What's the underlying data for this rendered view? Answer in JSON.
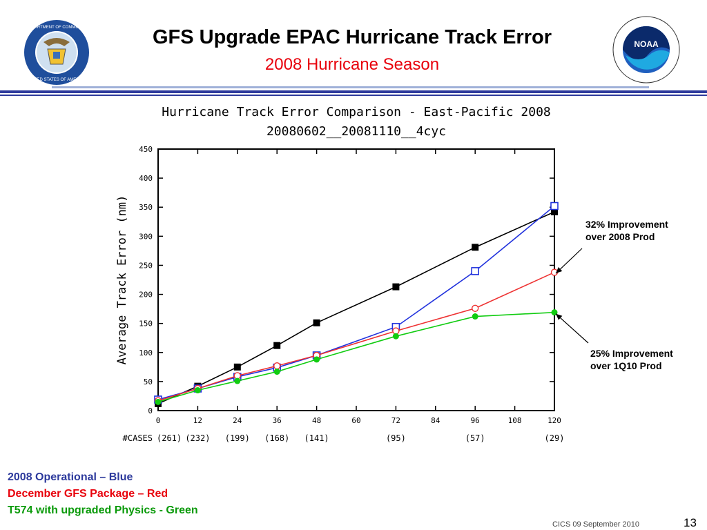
{
  "header": {
    "title": "GFS Upgrade EPAC Hurricane Track Error",
    "subtitle": "2008 Hurricane Season",
    "subtitle_color": "#e8000b",
    "rule_color": "#2d3a9c"
  },
  "logos": {
    "left_icon": "department-of-commerce-seal",
    "left_text": "DEPARTMENT OF COMMERCE · UNITED STATES OF AMERICA",
    "right_icon": "noaa-logo",
    "right_text": "NATIONAL OCEANIC AND ATMOSPHERIC ADMINISTRATION · U.S. DEPARTMENT OF COMMERCE",
    "right_label": "NOAA"
  },
  "chart_data": {
    "type": "line",
    "title": "Hurricane Track Error Comparison - East-Pacific 2008",
    "subtitle": "20080602__20081110__4cyc",
    "ylabel": "Average Track Error (nm)",
    "xlabel": "",
    "xlim": [
      0,
      120
    ],
    "ylim": [
      0,
      450
    ],
    "x_ticks": [
      0,
      12,
      24,
      36,
      48,
      60,
      72,
      84,
      96,
      108,
      120
    ],
    "y_ticks": [
      0,
      50,
      100,
      150,
      200,
      250,
      300,
      350,
      400,
      450
    ],
    "cases_label": "#CASES",
    "cases": [
      {
        "x": 0,
        "label": "(261)"
      },
      {
        "x": 12,
        "label": "(232)"
      },
      {
        "x": 24,
        "label": "(199)"
      },
      {
        "x": 36,
        "label": "(168)"
      },
      {
        "x": 48,
        "label": "(141)"
      },
      {
        "x": 72,
        "label": "(95)"
      },
      {
        "x": 96,
        "label": "(57)"
      },
      {
        "x": 120,
        "label": "(29)"
      }
    ],
    "grid": false,
    "series": [
      {
        "color": "#000000",
        "marker": "filled-square",
        "x": [
          0,
          12,
          24,
          36,
          48,
          72,
          96,
          120
        ],
        "y": [
          12,
          42,
          75,
          112,
          151,
          213,
          281,
          342
        ]
      },
      {
        "color": "#2233dd",
        "marker": "open-square",
        "x": [
          0,
          12,
          24,
          36,
          48,
          72,
          96,
          120
        ],
        "y": [
          19,
          38,
          58,
          74,
          95,
          144,
          240,
          352
        ]
      },
      {
        "color": "#ee3333",
        "marker": "open-circle",
        "x": [
          0,
          12,
          24,
          36,
          48,
          72,
          96,
          120
        ],
        "y": [
          17,
          38,
          60,
          77,
          95,
          137,
          176,
          238
        ]
      },
      {
        "color": "#11cc11",
        "marker": "filled-circle",
        "x": [
          0,
          12,
          24,
          36,
          48,
          72,
          96,
          120
        ],
        "y": [
          15,
          35,
          51,
          67,
          88,
          128,
          162,
          169
        ]
      }
    ],
    "annotations": [
      {
        "text": "32% Improvement over 2008 Prod",
        "line1": "32% Improvement",
        "line2": "over 2008 Prod",
        "arrow_to": {
          "x": 120,
          "y": 248
        }
      },
      {
        "text": "25% Improvement over 1Q10 Prod",
        "line1": "25% Improvement",
        "line2": "over 1Q10 Prod",
        "arrow_to": {
          "x": 120,
          "y": 169
        }
      }
    ]
  },
  "legend": [
    {
      "text": "2008 Operational – Blue",
      "color": "#2d3a9c"
    },
    {
      "text": "December GFS Package – Red",
      "color": "#e8000b"
    },
    {
      "text": "T574 with upgraded Physics - Green",
      "color": "#0a9a0a"
    }
  ],
  "footer": {
    "text": "CICS 09 September 2010",
    "page_number": "13"
  }
}
